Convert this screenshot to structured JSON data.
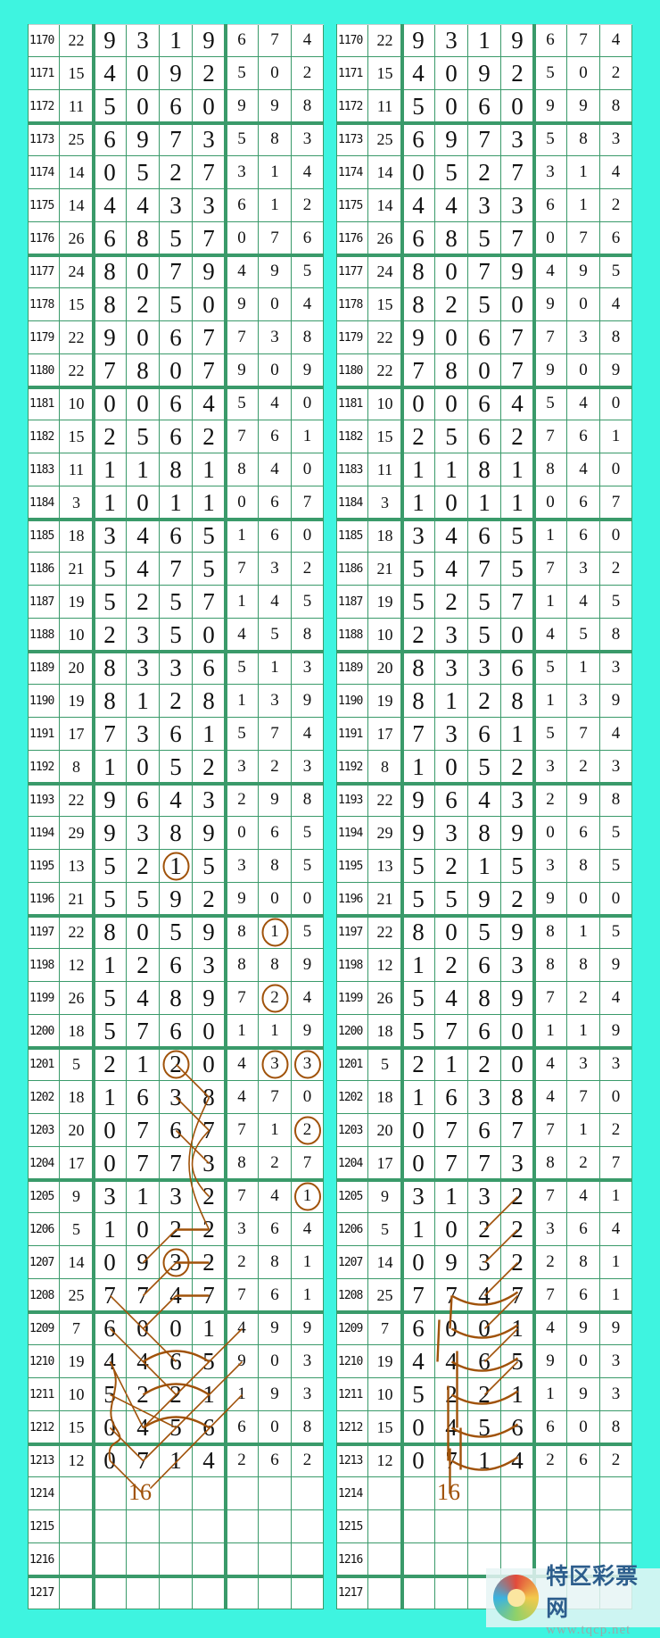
{
  "rows": [
    [
      "1170",
      "22",
      "9",
      "3",
      "1",
      "9",
      "6",
      "7",
      "4"
    ],
    [
      "1171",
      "15",
      "4",
      "0",
      "9",
      "2",
      "5",
      "0",
      "2"
    ],
    [
      "1172",
      "11",
      "5",
      "0",
      "6",
      "0",
      "9",
      "9",
      "8"
    ],
    [
      "1173",
      "25",
      "6",
      "9",
      "7",
      "3",
      "5",
      "8",
      "3"
    ],
    [
      "1174",
      "14",
      "0",
      "5",
      "2",
      "7",
      "3",
      "1",
      "4"
    ],
    [
      "1175",
      "14",
      "4",
      "4",
      "3",
      "3",
      "6",
      "1",
      "2"
    ],
    [
      "1176",
      "26",
      "6",
      "8",
      "5",
      "7",
      "0",
      "7",
      "6"
    ],
    [
      "1177",
      "24",
      "8",
      "0",
      "7",
      "9",
      "4",
      "9",
      "5"
    ],
    [
      "1178",
      "15",
      "8",
      "2",
      "5",
      "0",
      "9",
      "0",
      "4"
    ],
    [
      "1179",
      "22",
      "9",
      "0",
      "6",
      "7",
      "7",
      "3",
      "8"
    ],
    [
      "1180",
      "22",
      "7",
      "8",
      "0",
      "7",
      "9",
      "0",
      "9"
    ],
    [
      "1181",
      "10",
      "0",
      "0",
      "6",
      "4",
      "5",
      "4",
      "0"
    ],
    [
      "1182",
      "15",
      "2",
      "5",
      "6",
      "2",
      "7",
      "6",
      "1"
    ],
    [
      "1183",
      "11",
      "1",
      "1",
      "8",
      "1",
      "8",
      "4",
      "0"
    ],
    [
      "1184",
      "3",
      "1",
      "0",
      "1",
      "1",
      "0",
      "6",
      "7"
    ],
    [
      "1185",
      "18",
      "3",
      "4",
      "6",
      "5",
      "1",
      "6",
      "0"
    ],
    [
      "1186",
      "21",
      "5",
      "4",
      "7",
      "5",
      "7",
      "3",
      "2"
    ],
    [
      "1187",
      "19",
      "5",
      "2",
      "5",
      "7",
      "1",
      "4",
      "5"
    ],
    [
      "1188",
      "10",
      "2",
      "3",
      "5",
      "0",
      "4",
      "5",
      "8"
    ],
    [
      "1189",
      "20",
      "8",
      "3",
      "3",
      "6",
      "5",
      "1",
      "3"
    ],
    [
      "1190",
      "19",
      "8",
      "1",
      "2",
      "8",
      "1",
      "3",
      "9"
    ],
    [
      "1191",
      "17",
      "7",
      "3",
      "6",
      "1",
      "5",
      "7",
      "4"
    ],
    [
      "1192",
      "8",
      "1",
      "0",
      "5",
      "2",
      "3",
      "2",
      "3"
    ],
    [
      "1193",
      "22",
      "9",
      "6",
      "4",
      "3",
      "2",
      "9",
      "8"
    ],
    [
      "1194",
      "29",
      "9",
      "3",
      "8",
      "9",
      "0",
      "6",
      "5"
    ],
    [
      "1195",
      "13",
      "5",
      "2",
      "1",
      "5",
      "3",
      "8",
      "5"
    ],
    [
      "1196",
      "21",
      "5",
      "5",
      "9",
      "2",
      "9",
      "0",
      "0"
    ],
    [
      "1197",
      "22",
      "8",
      "0",
      "5",
      "9",
      "8",
      "1",
      "5"
    ],
    [
      "1198",
      "12",
      "1",
      "2",
      "6",
      "3",
      "8",
      "8",
      "9"
    ],
    [
      "1199",
      "26",
      "5",
      "4",
      "8",
      "9",
      "7",
      "2",
      "4"
    ],
    [
      "1200",
      "18",
      "5",
      "7",
      "6",
      "0",
      "1",
      "1",
      "9"
    ],
    [
      "1201",
      "5",
      "2",
      "1",
      "2",
      "0",
      "4",
      "3",
      "3"
    ],
    [
      "1202",
      "18",
      "1",
      "6",
      "3",
      "8",
      "4",
      "7",
      "0"
    ],
    [
      "1203",
      "20",
      "0",
      "7",
      "6",
      "7",
      "7",
      "1",
      "2"
    ],
    [
      "1204",
      "17",
      "0",
      "7",
      "7",
      "3",
      "8",
      "2",
      "7"
    ],
    [
      "1205",
      "9",
      "3",
      "1",
      "3",
      "2",
      "7",
      "4",
      "1"
    ],
    [
      "1206",
      "5",
      "1",
      "0",
      "2",
      "2",
      "3",
      "6",
      "4"
    ],
    [
      "1207",
      "14",
      "0",
      "9",
      "3",
      "2",
      "2",
      "8",
      "1"
    ],
    [
      "1208",
      "25",
      "7",
      "7",
      "4",
      "7",
      "7",
      "6",
      "1"
    ],
    [
      "1209",
      "7",
      "6",
      "0",
      "0",
      "1",
      "4",
      "9",
      "9"
    ],
    [
      "1210",
      "19",
      "4",
      "4",
      "6",
      "5",
      "9",
      "0",
      "3"
    ],
    [
      "1211",
      "10",
      "5",
      "2",
      "2",
      "1",
      "1",
      "9",
      "3"
    ],
    [
      "1212",
      "15",
      "0",
      "4",
      "5",
      "6",
      "6",
      "0",
      "8"
    ],
    [
      "1213",
      "12",
      "0",
      "7",
      "1",
      "4",
      "2",
      "6",
      "2"
    ],
    [
      "1214",
      "",
      "",
      "",
      "",
      "",
      "",
      "",
      ""
    ],
    [
      "1215",
      "",
      "",
      "",
      "",
      "",
      "",
      "",
      ""
    ],
    [
      "1216",
      "",
      "",
      "",
      "",
      "",
      "",
      "",
      ""
    ],
    [
      "1217",
      "",
      "",
      "",
      "",
      "",
      "",
      "",
      ""
    ]
  ],
  "left_table": {
    "circled": [
      {
        "issue": "1195",
        "column": 4
      },
      {
        "issue": "1197",
        "column": 7
      },
      {
        "issue": "1199",
        "column": 7
      },
      {
        "issue": "1201",
        "column": 4
      },
      {
        "issue": "1201",
        "column": 7
      },
      {
        "issue": "1201",
        "column": 8
      },
      {
        "issue": "1203",
        "column": 8
      },
      {
        "issue": "1205",
        "column": 8
      },
      {
        "issue": "1207",
        "column": 4
      }
    ],
    "annotation": "16"
  },
  "right_table": {
    "annotation": "16"
  },
  "colors": {
    "background": "#3ef4e0",
    "grid": "#3a9a6a",
    "annotation": "#a0520a"
  },
  "watermark": {
    "title": "特区彩票网",
    "url": "www.tqcp.net"
  }
}
